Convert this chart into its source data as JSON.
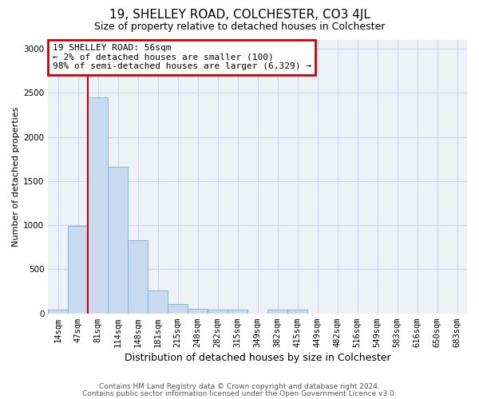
{
  "title1": "19, SHELLEY ROAD, COLCHESTER, CO3 4JL",
  "title2": "Size of property relative to detached houses in Colchester",
  "xlabel": "Distribution of detached houses by size in Colchester",
  "ylabel": "Number of detached properties",
  "footnote1": "Contains HM Land Registry data © Crown copyright and database right 2024.",
  "footnote2": "Contains public sector information licensed under the Open Government Licence v3.0.",
  "annotation_title": "19 SHELLEY ROAD: 56sqm",
  "annotation_line1": "← 2% of detached houses are smaller (100)",
  "annotation_line2": "98% of semi-detached houses are larger (6,329) →",
  "bar_color": "#c8daef",
  "bar_edge_color": "#7aacd4",
  "grid_color": "#ccd5e8",
  "background_color": "#edf1f8",
  "vline_color": "#cc0000",
  "annotation_border_color": "#cc0000",
  "categories": [
    "14sqm",
    "47sqm",
    "81sqm",
    "114sqm",
    "148sqm",
    "181sqm",
    "215sqm",
    "248sqm",
    "282sqm",
    "315sqm",
    "349sqm",
    "382sqm",
    "415sqm",
    "449sqm",
    "482sqm",
    "516sqm",
    "549sqm",
    "583sqm",
    "616sqm",
    "650sqm",
    "683sqm"
  ],
  "values": [
    40,
    990,
    2450,
    1660,
    830,
    260,
    110,
    50,
    40,
    40,
    0,
    40,
    40,
    0,
    0,
    0,
    0,
    0,
    0,
    0,
    0
  ],
  "ylim": [
    0,
    3100
  ],
  "yticks": [
    0,
    500,
    1000,
    1500,
    2000,
    2500,
    3000
  ],
  "vline_x_index": 1.5,
  "title1_fontsize": 11,
  "title2_fontsize": 9,
  "ylabel_fontsize": 8,
  "xlabel_fontsize": 9,
  "tick_fontsize": 7.5,
  "footnote_fontsize": 6.5
}
